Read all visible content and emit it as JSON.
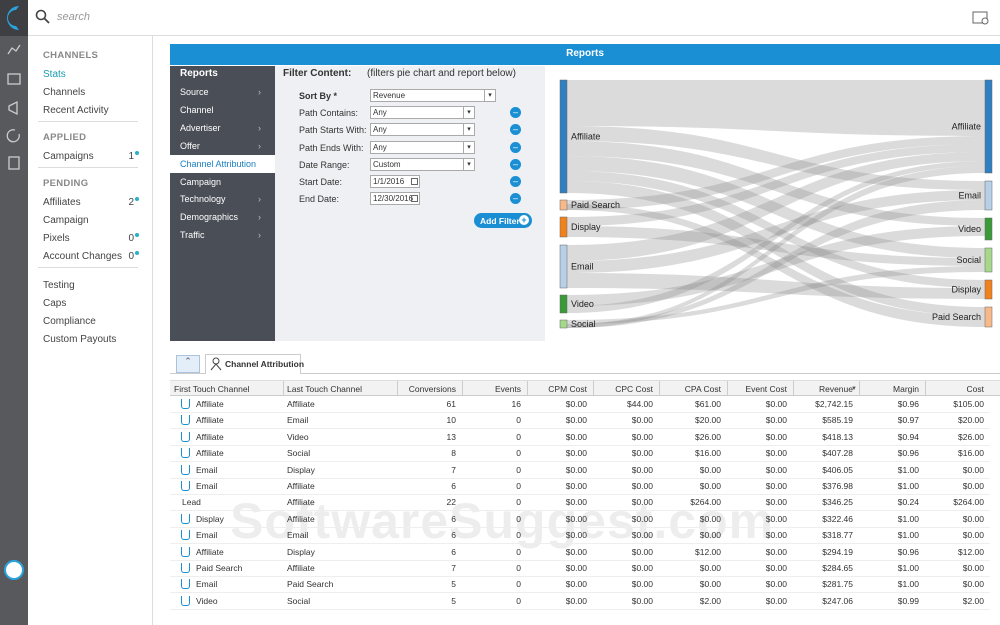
{
  "search": {
    "placeholder": "search"
  },
  "sidebar": {
    "sections": [
      {
        "title": "CHANNELS",
        "items": [
          {
            "label": "Stats",
            "active": true
          },
          {
            "label": "Channels"
          },
          {
            "label": "Recent Activity"
          }
        ]
      },
      {
        "title": "APPLIED",
        "items": [
          {
            "label": "Campaigns",
            "count": "1"
          }
        ]
      },
      {
        "title": "PENDING",
        "items": [
          {
            "label": "Affiliates",
            "count": "2"
          },
          {
            "label": "Campaign"
          },
          {
            "label": "Pixels",
            "count": "0"
          },
          {
            "label": "Account Changes",
            "count": "0"
          }
        ]
      },
      {
        "items": [
          {
            "label": "Testing"
          },
          {
            "label": "Caps"
          },
          {
            "label": "Compliance"
          },
          {
            "label": "Custom Payouts"
          }
        ]
      }
    ]
  },
  "reports": {
    "header": "Reports",
    "menu": {
      "title": "Reports",
      "items": [
        {
          "label": "Source",
          "submenu": true
        },
        {
          "label": "Channel"
        },
        {
          "label": "Advertiser",
          "submenu": true
        },
        {
          "label": "Offer",
          "submenu": true
        },
        {
          "label": "Channel Attribution",
          "active": true
        },
        {
          "label": "Campaign"
        },
        {
          "label": "Technology",
          "submenu": true
        },
        {
          "label": "Demographics",
          "submenu": true
        },
        {
          "label": "Traffic",
          "submenu": true
        }
      ]
    },
    "filter": {
      "title": "Filter Content:",
      "note": "(filters pie chart and report below)",
      "fields": [
        {
          "label": "Sort By *",
          "value": "Revenue",
          "input": "select",
          "wide": true
        },
        {
          "label": "Path Contains:",
          "value": "Any",
          "input": "select",
          "removable": true
        },
        {
          "label": "Path Starts With:",
          "value": "Any",
          "input": "select",
          "removable": true
        },
        {
          "label": "Path Ends With:",
          "value": "Any",
          "input": "select",
          "removable": true
        },
        {
          "label": "Date Range:",
          "value": "Custom",
          "input": "select",
          "removable": true
        },
        {
          "label": "Start Date:",
          "value": "1/1/2016",
          "input": "date",
          "removable": true
        },
        {
          "label": "End Date:",
          "value": "12/30/2016",
          "input": "date",
          "removable": true
        }
      ],
      "button": "Add Filter"
    },
    "sankey": {
      "left": [
        {
          "label": "Affiliate",
          "color": "#2f7fc1"
        },
        {
          "label": "Paid Search",
          "color": "#f7b98a"
        },
        {
          "label": "Display",
          "color": "#f0821e"
        },
        {
          "label": "Email",
          "color": "#b8cfe8"
        },
        {
          "label": "Video",
          "color": "#3a9a3a"
        },
        {
          "label": "Social",
          "color": "#a5d88a"
        }
      ],
      "right": [
        {
          "label": "Affiliate",
          "color": "#2f7fc1"
        },
        {
          "label": "Email",
          "color": "#b8cfe8"
        },
        {
          "label": "Video",
          "color": "#3a9a3a"
        },
        {
          "label": "Social",
          "color": "#a5d88a"
        },
        {
          "label": "Display",
          "color": "#f0821e"
        },
        {
          "label": "Paid Search",
          "color": "#f7b98a"
        }
      ]
    }
  },
  "tab": {
    "label": "Channel Attribution"
  },
  "table": {
    "columns": [
      "First Touch Channel",
      "Last Touch Channel",
      "Conversions",
      "Events",
      "CPM Cost",
      "CPC Cost",
      "CPA Cost",
      "Event Cost",
      "Revenue",
      "Margin",
      "Cost"
    ],
    "sorted_column": 8,
    "rows": [
      {
        "icon": true,
        "cells": [
          "Affiliate",
          "Affiliate",
          "61",
          "16",
          "$0.00",
          "$44.00",
          "$61.00",
          "$0.00",
          "$2,742.15",
          "$0.96",
          "$105.00"
        ]
      },
      {
        "icon": true,
        "cells": [
          "Affiliate",
          "Email",
          "10",
          "0",
          "$0.00",
          "$0.00",
          "$20.00",
          "$0.00",
          "$585.19",
          "$0.97",
          "$20.00"
        ]
      },
      {
        "icon": true,
        "cells": [
          "Affiliate",
          "Video",
          "13",
          "0",
          "$0.00",
          "$0.00",
          "$26.00",
          "$0.00",
          "$418.13",
          "$0.94",
          "$26.00"
        ]
      },
      {
        "icon": true,
        "cells": [
          "Affiliate",
          "Social",
          "8",
          "0",
          "$0.00",
          "$0.00",
          "$16.00",
          "$0.00",
          "$407.28",
          "$0.96",
          "$16.00"
        ]
      },
      {
        "icon": true,
        "cells": [
          "Email",
          "Display",
          "7",
          "0",
          "$0.00",
          "$0.00",
          "$0.00",
          "$0.00",
          "$406.05",
          "$1.00",
          "$0.00"
        ]
      },
      {
        "icon": true,
        "cells": [
          "Email",
          "Affiliate",
          "6",
          "0",
          "$0.00",
          "$0.00",
          "$0.00",
          "$0.00",
          "$376.98",
          "$1.00",
          "$0.00"
        ]
      },
      {
        "icon": false,
        "cells": [
          "Lead",
          "Affiliate",
          "22",
          "0",
          "$0.00",
          "$0.00",
          "$264.00",
          "$0.00",
          "$346.25",
          "$0.24",
          "$264.00"
        ]
      },
      {
        "icon": true,
        "cells": [
          "Display",
          "Affiliate",
          "6",
          "0",
          "$0.00",
          "$0.00",
          "$0.00",
          "$0.00",
          "$322.46",
          "$1.00",
          "$0.00"
        ]
      },
      {
        "icon": true,
        "cells": [
          "Email",
          "Email",
          "6",
          "0",
          "$0.00",
          "$0.00",
          "$0.00",
          "$0.00",
          "$318.77",
          "$1.00",
          "$0.00"
        ]
      },
      {
        "icon": true,
        "cells": [
          "Affiliate",
          "Display",
          "6",
          "0",
          "$0.00",
          "$0.00",
          "$12.00",
          "$0.00",
          "$294.19",
          "$0.96",
          "$12.00"
        ]
      },
      {
        "icon": true,
        "cells": [
          "Paid Search",
          "Affiliate",
          "7",
          "0",
          "$0.00",
          "$0.00",
          "$0.00",
          "$0.00",
          "$284.65",
          "$1.00",
          "$0.00"
        ]
      },
      {
        "icon": true,
        "cells": [
          "Email",
          "Paid Search",
          "5",
          "0",
          "$0.00",
          "$0.00",
          "$0.00",
          "$0.00",
          "$281.75",
          "$1.00",
          "$0.00"
        ]
      },
      {
        "icon": true,
        "cells": [
          "Video",
          "Social",
          "5",
          "0",
          "$0.00",
          "$0.00",
          "$2.00",
          "$0.00",
          "$247.06",
          "$0.99",
          "$2.00"
        ]
      }
    ]
  },
  "watermark": "SoftwareSuggest.com"
}
